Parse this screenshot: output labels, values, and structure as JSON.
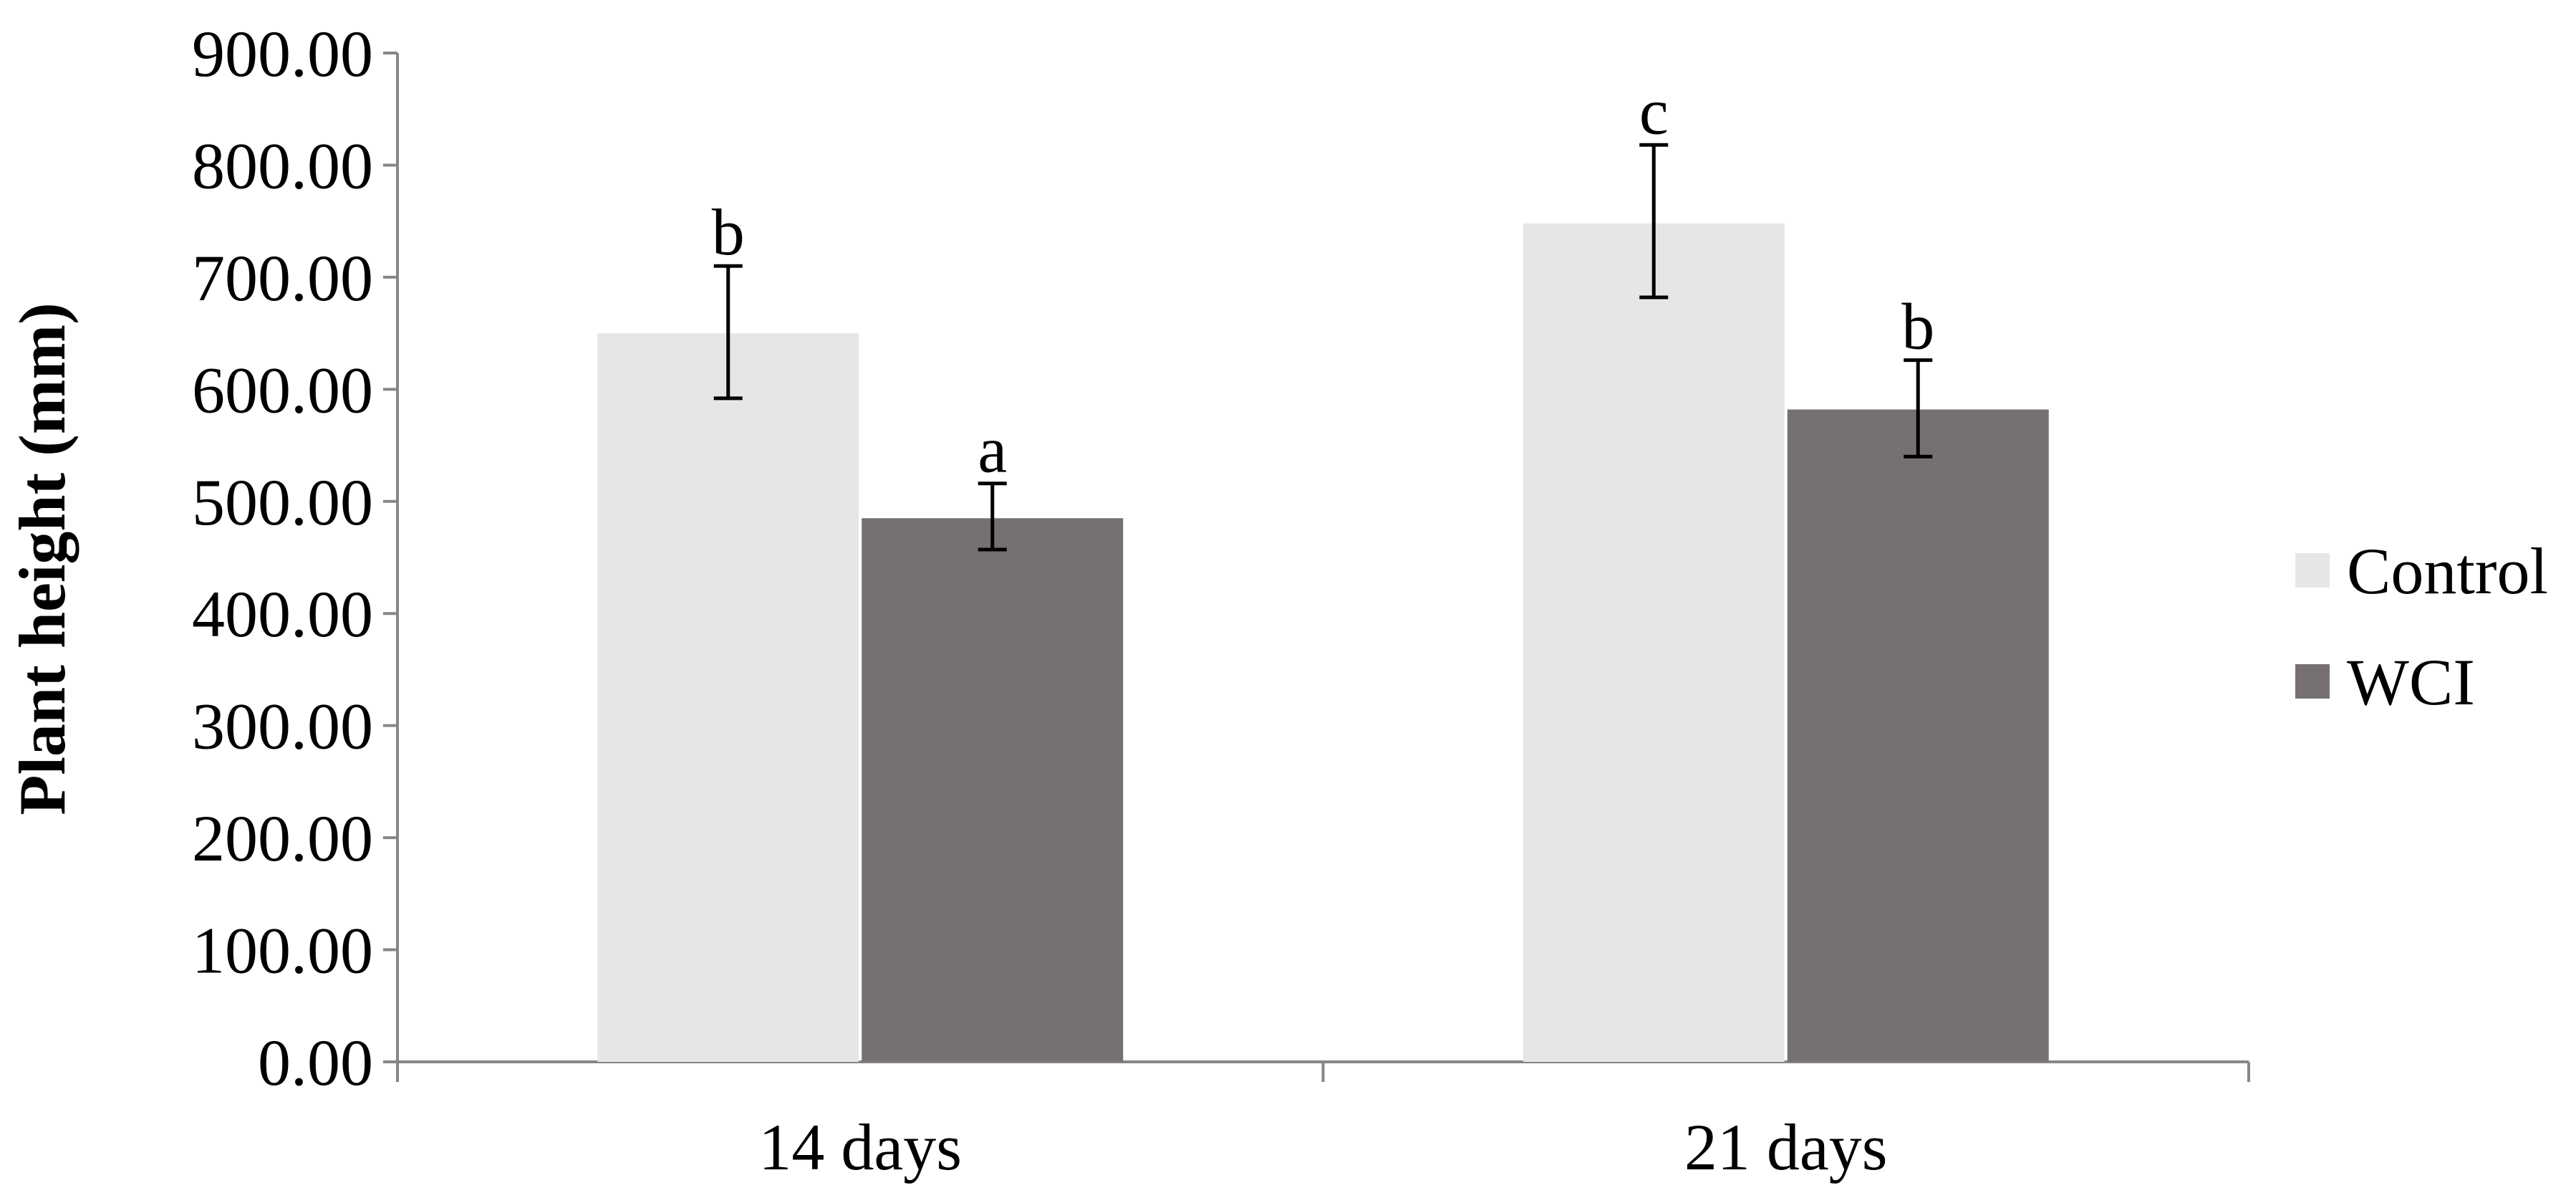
{
  "chart_data": {
    "type": "bar",
    "title": "",
    "xlabel": "",
    "ylabel": "Plant height (mm)",
    "ylim": [
      0,
      900
    ],
    "yticks": [
      0,
      100,
      200,
      300,
      400,
      500,
      600,
      700,
      800,
      900
    ],
    "ytick_labels": [
      "0.00",
      "100.00",
      "200.00",
      "300.00",
      "400.00",
      "500.00",
      "600.00",
      "700.00",
      "800.00",
      "900.00"
    ],
    "categories": [
      "14 days",
      "21 days"
    ],
    "series": [
      {
        "name": "Control",
        "color": "#e6e6e6",
        "values": [
          650,
          748
        ],
        "error_low": [
          592,
          682
        ],
        "error_high": [
          710,
          818
        ],
        "labels": [
          "b",
          "c"
        ]
      },
      {
        "name": "WCI",
        "color": "#767170",
        "values": [
          485,
          582
        ],
        "error_low": [
          457,
          540
        ],
        "error_high": [
          516,
          626
        ],
        "labels": [
          "a",
          "b"
        ]
      }
    ],
    "legend": {
      "position": "right",
      "entries": [
        "Control",
        "WCI"
      ]
    },
    "grid": false
  }
}
